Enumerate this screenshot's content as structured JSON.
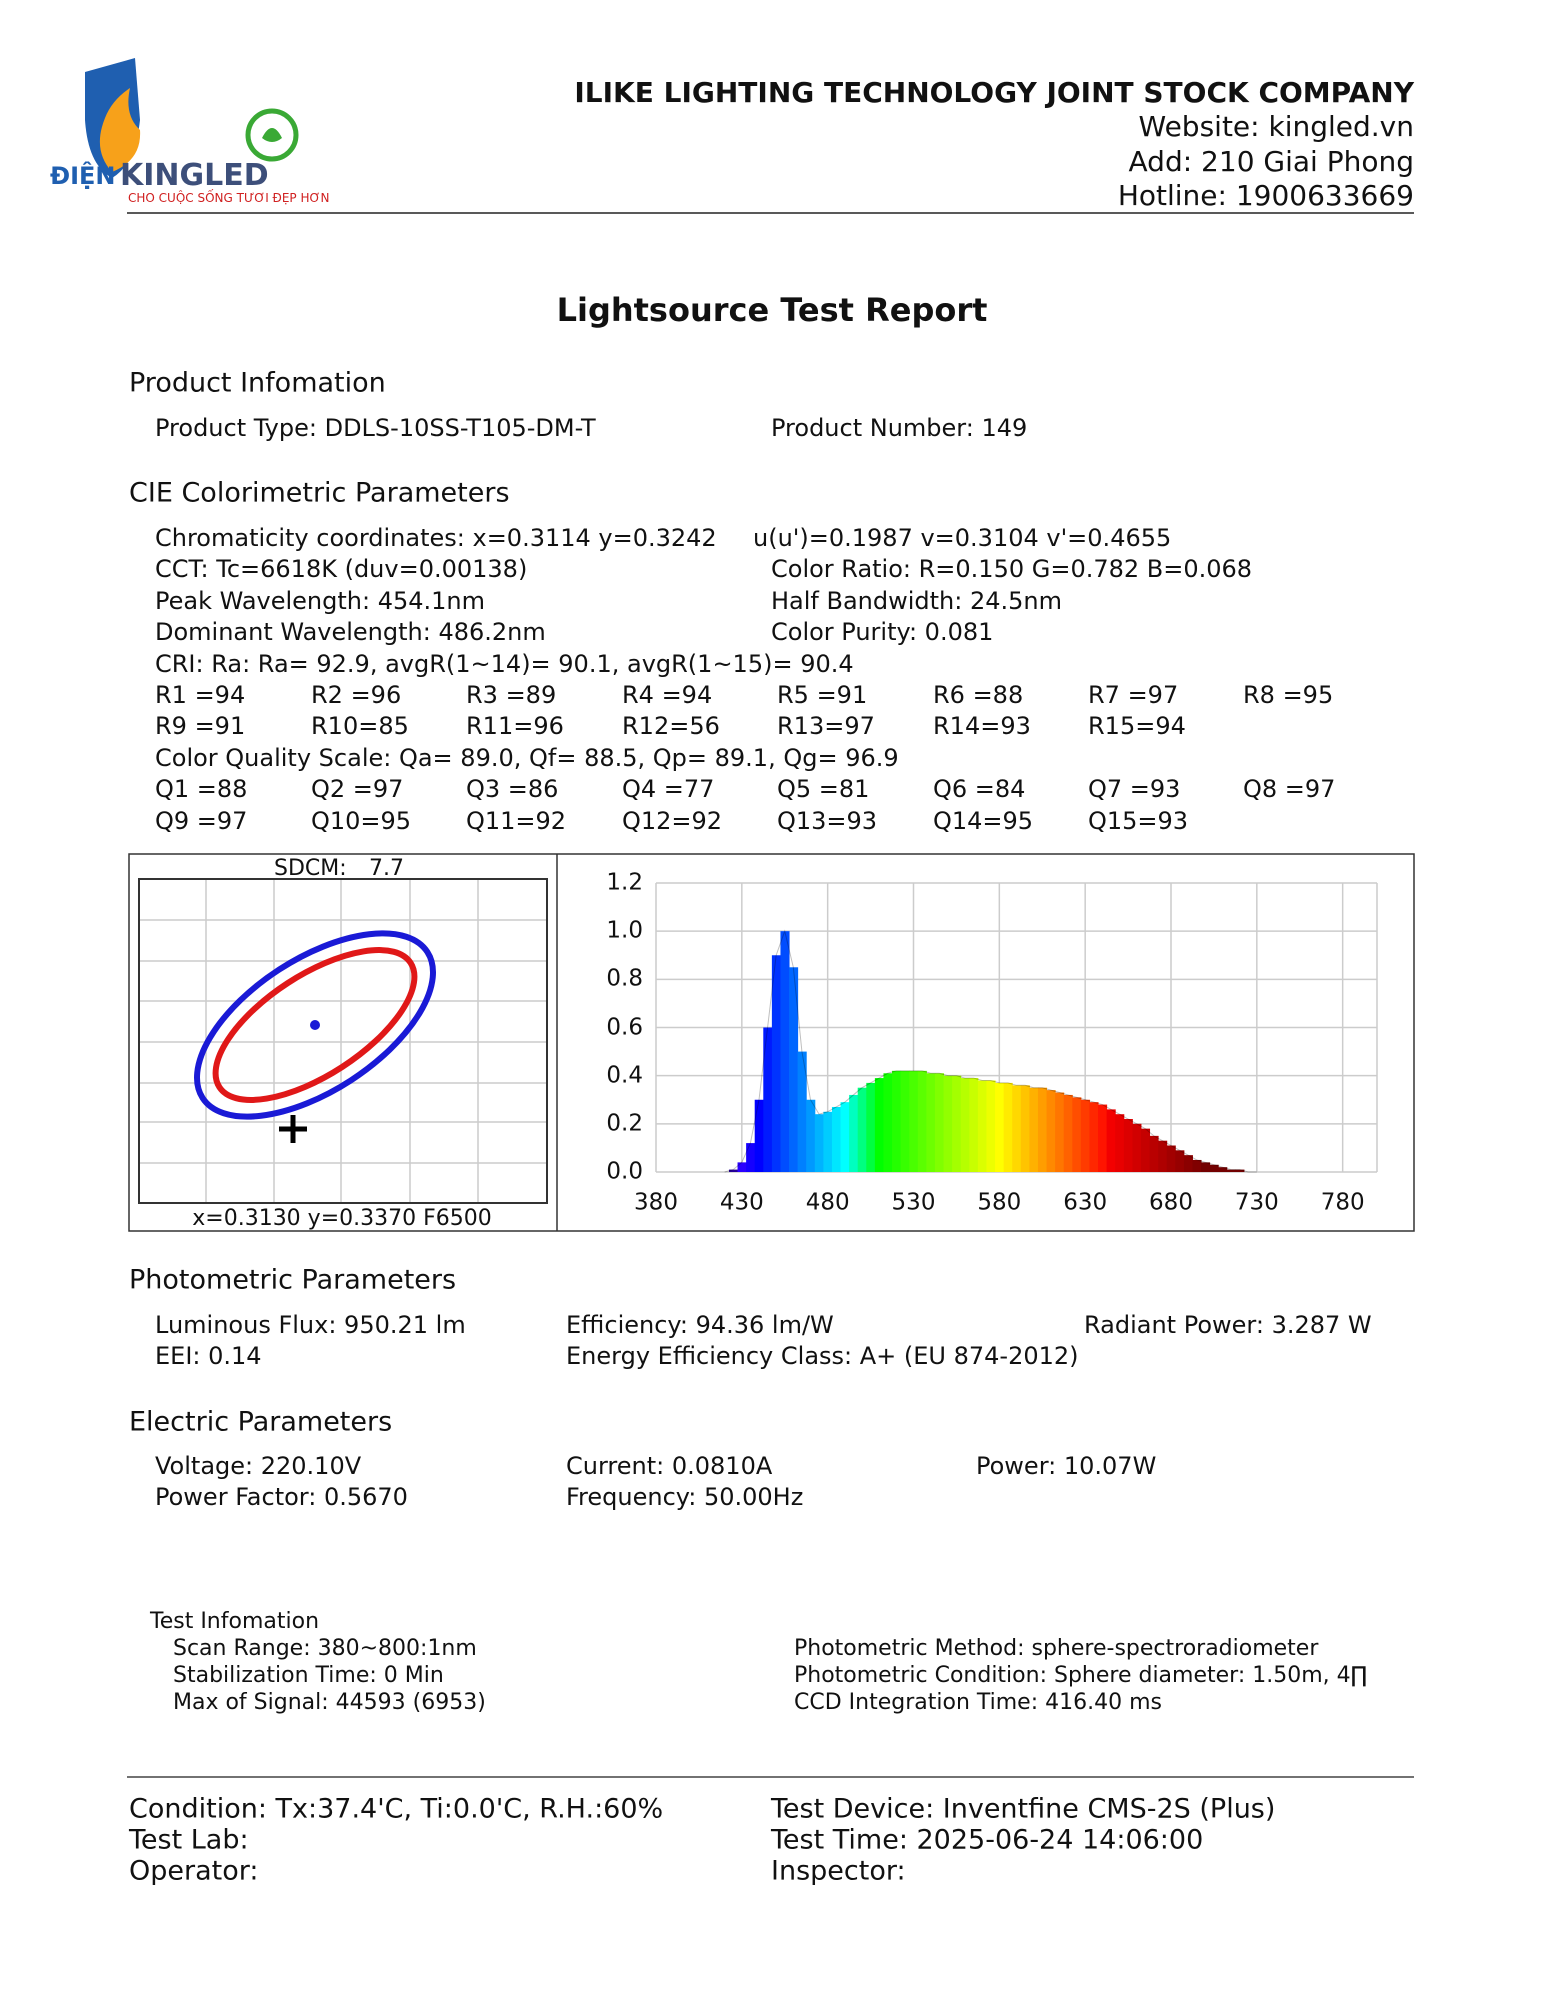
{
  "header": {
    "company": "ILIKE LIGHTING TECHNOLOGY JOINT STOCK COMPANY",
    "website": "Website: kingled.vn",
    "address": "Add: 210 Giai Phong",
    "hotline": "Hotline: 1900633669"
  },
  "logo": {
    "brand_left": "ĐIỆN",
    "brand": "KINGLED",
    "tagline": "CHO CUỘC SỐNG TƯƠI ĐẸP HƠN"
  },
  "title": "Lightsource Test Report",
  "product": {
    "heading": "Product Infomation",
    "type": "Product Type: DDLS-10SS-T105-DM-T",
    "number": "Product Number: 149"
  },
  "cie": {
    "heading": "CIE Colorimetric Parameters",
    "rows": [
      [
        "Chromaticity coordinates: x=0.3114 y=0.3242",
        "u(u')=0.1987 v=0.3104 v'=0.4655"
      ],
      [
        "CCT: Tc=6618K (duv=0.00138)",
        "Color Ratio: R=0.150  G=0.782  B=0.068"
      ],
      [
        "Peak Wavelength: 454.1nm",
        "Half Bandwidth: 24.5nm"
      ],
      [
        "Dominant Wavelength: 486.2nm",
        "Color Purity: 0.081"
      ],
      [
        "CRI: Ra: Ra= 92.9, avgR(1~14)= 90.1, avgR(1~15)= 90.4"
      ],
      [
        "R1 =94",
        "R2 =96",
        "R3 =89",
        "R4 =94",
        "R5 =91",
        "R6 =88",
        "R7 =97",
        "R8 =95"
      ],
      [
        "R9 =91",
        "R10=85",
        "R11=96",
        "R12=56",
        "R13=97",
        "R14=93",
        "R15=94"
      ],
      [
        "Color Quality Scale: Qa= 89.0, Qf= 88.5, Qp= 89.1, Qg= 96.9"
      ],
      [
        "Q1 =88",
        "Q2 =97",
        "Q3 =86",
        "Q4 =77",
        "Q5 =81",
        "Q6 =84",
        "Q7 =93",
        "Q8 =97"
      ],
      [
        "Q9 =97",
        "Q10=95",
        "Q11=92",
        "Q12=92",
        "Q13=93",
        "Q14=95",
        "Q15=93"
      ]
    ]
  },
  "cie_plot": {
    "sdcm_label": "SDCM:",
    "sdcm": 7.7,
    "reference": "x=0.3130 y=0.3370 F6500"
  },
  "chart_data": {
    "type": "area",
    "xlim": [
      380,
      800
    ],
    "ylim": [
      0,
      1.2
    ],
    "xticks": [
      380,
      430,
      480,
      530,
      580,
      630,
      680,
      730,
      780
    ],
    "yticks": [
      {
        "value": 0,
        "label": "0.0"
      },
      0.2,
      0.4,
      0.6,
      0.8,
      {
        "value": 1,
        "label": "1.0"
      },
      1.2
    ],
    "grid": true,
    "x": [
      420,
      425,
      430,
      435,
      440,
      445,
      450,
      455,
      460,
      465,
      470,
      475,
      480,
      485,
      490,
      495,
      500,
      505,
      510,
      515,
      520,
      525,
      530,
      535,
      540,
      545,
      550,
      555,
      560,
      565,
      570,
      575,
      580,
      585,
      590,
      595,
      600,
      605,
      610,
      615,
      620,
      625,
      630,
      635,
      640,
      645,
      650,
      655,
      660,
      665,
      670,
      675,
      680,
      685,
      690,
      695,
      700,
      705,
      710,
      715,
      720,
      725,
      730
    ],
    "values": [
      0,
      0.01,
      0.04,
      0.12,
      0.3,
      0.6,
      0.9,
      1.0,
      0.85,
      0.5,
      0.3,
      0.24,
      0.25,
      0.27,
      0.29,
      0.32,
      0.35,
      0.37,
      0.39,
      0.41,
      0.42,
      0.42,
      0.42,
      0.42,
      0.41,
      0.41,
      0.4,
      0.4,
      0.39,
      0.39,
      0.38,
      0.38,
      0.37,
      0.37,
      0.36,
      0.36,
      0.35,
      0.35,
      0.34,
      0.33,
      0.32,
      0.31,
      0.3,
      0.29,
      0.28,
      0.26,
      0.24,
      0.22,
      0.2,
      0.18,
      0.15,
      0.13,
      0.11,
      0.09,
      0.07,
      0.05,
      0.04,
      0.03,
      0.02,
      0.01,
      0.01,
      0,
      0
    ]
  },
  "photometric": {
    "heading": "Photometric Parameters",
    "rows": [
      [
        "Luminous Flux: 950.21 lm",
        "Efficiency: 94.36 lm/W",
        "Radiant Power: 3.287 W"
      ],
      [
        "EEI:  0.14",
        "Energy Efficiency Class: A+ (EU 874-2012)"
      ]
    ]
  },
  "electric": {
    "heading": "Electric Parameters",
    "rows": [
      [
        "Voltage: 220.10V",
        "Current: 0.0810A",
        "Power: 10.07W"
      ],
      [
        "Power Factor: 0.5670",
        "Frequency: 50.00Hz"
      ]
    ]
  },
  "test_info": {
    "heading": "Test Infomation",
    "left": [
      "Scan Range: 380~800:1nm",
      "Stabilization Time: 0 Min",
      "Max of Signal: 44593 (6953)"
    ],
    "right": [
      "Photometric Method: sphere-spectroradiometer",
      "Photometric Condition: Sphere diameter: 1.50m, 4∏",
      "CCD Integration Time: 416.40 ms"
    ]
  },
  "footer": {
    "left": [
      "Condition: Tx:37.4'C, Ti:0.0'C, R.H.:60%",
      "Test Lab:",
      "Operator:"
    ],
    "right": [
      "Test Device: Inventfine CMS-2S (Plus)",
      "Test Time: 2025-06-24 14:06:00",
      "Inspector:"
    ]
  }
}
